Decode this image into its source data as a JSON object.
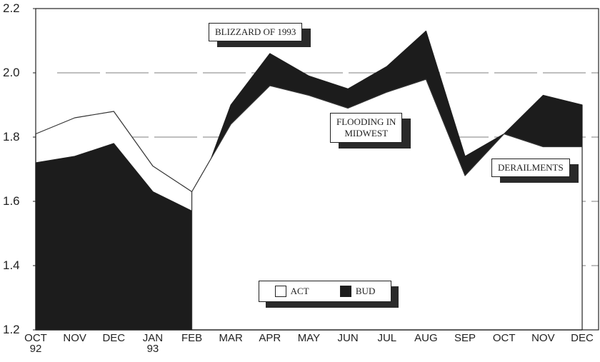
{
  "chart_data": {
    "type": "area",
    "categories": [
      "OCT\n92",
      "NOV",
      "DEC",
      "JAN\n93",
      "FEB",
      "MAR",
      "APR",
      "MAY",
      "JUN",
      "JUL",
      "AUG",
      "SEP",
      "OCT",
      "NOV",
      "DEC"
    ],
    "series": [
      {
        "name": "ACT",
        "color": "#ffffff",
        "values": [
          1.81,
          1.86,
          1.88,
          1.71,
          1.63,
          1.84,
          1.96,
          1.93,
          1.89,
          1.94,
          1.98,
          1.68,
          1.81,
          1.77,
          1.77
        ]
      },
      {
        "name": "BUD",
        "color": "#1c1c1c",
        "values": [
          1.72,
          1.74,
          1.78,
          1.63,
          1.57,
          1.9,
          2.06,
          1.99,
          1.95,
          2.02,
          2.13,
          1.74,
          1.81,
          1.93,
          1.9
        ]
      }
    ],
    "ylim": [
      1.2,
      2.2
    ],
    "yticks": [
      1.2,
      1.4,
      1.6,
      1.8,
      {
        "value": 2,
        "label": "2.0"
      },
      2.2
    ],
    "grid": true,
    "legend": "bottom",
    "annotations": [
      "BLIZZARD OF 1993",
      "FLOODING IN\nMIDWEST",
      "DERAILMENTS"
    ]
  }
}
